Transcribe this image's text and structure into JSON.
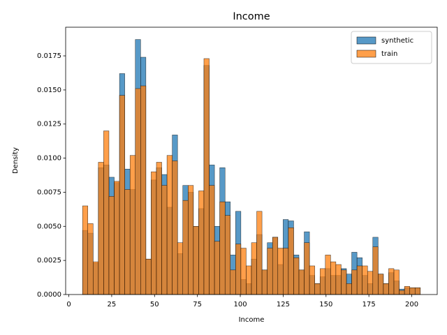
{
  "chart_data": {
    "type": "histogram",
    "title": "Income",
    "x_label": "Income",
    "y_label": "Density",
    "bins": [
      8,
      11.08,
      14.16,
      17.23,
      20.31,
      23.39,
      26.47,
      29.55,
      32.62,
      35.7,
      38.78,
      41.86,
      44.94,
      48.01,
      51.09,
      54.17,
      57.25,
      60.33,
      63.4,
      66.48,
      69.56,
      72.64,
      75.72,
      78.79,
      81.87,
      84.95,
      88.03,
      91.11,
      94.18,
      97.26,
      100.34,
      103.42,
      106.5,
      109.57,
      112.65,
      115.73,
      118.81,
      121.89,
      124.96,
      128.04,
      131.12,
      134.2,
      137.28,
      140.35,
      143.43,
      146.51,
      149.59,
      152.67,
      155.74,
      158.82,
      161.9,
      164.98,
      168.06,
      171.13,
      174.21,
      177.29,
      180.37,
      183.45,
      186.52,
      189.6,
      192.68,
      195.76,
      198.84,
      201.91,
      204.99
    ],
    "series": [
      {
        "name": "synthetic",
        "color": "#1f77b4",
        "values": [
          0.0047,
          0.0045,
          0.0023,
          0.0093,
          0.0095,
          0.0086,
          0.0082,
          0.0162,
          0.0092,
          0.0077,
          0.0187,
          0.0174,
          0.0026,
          0.0084,
          0.0093,
          0.0088,
          0.0064,
          0.0117,
          0.003,
          0.008,
          0.0075,
          0.005,
          0.0063,
          0.0168,
          0.0095,
          0.005,
          0.0093,
          0.0068,
          0.0029,
          0.0061,
          0.0011,
          0.0008,
          0.0026,
          0.0044,
          0.0018,
          0.0038,
          0.0042,
          0.0022,
          0.0055,
          0.0054,
          0.0029,
          0.0018,
          0.0046,
          0.0014,
          0.0008,
          0.0013,
          0.0019,
          0.0014,
          0.0014,
          0.0019,
          0.0015,
          0.0031,
          0.0027,
          0.0014,
          0.0008,
          0.0042,
          0.0015,
          0.0008,
          0.0016,
          0.001,
          0.0004,
          0.0005,
          0.0005,
          0.0005
        ]
      },
      {
        "name": "train",
        "color": "#ff7f0e",
        "values": [
          0.0065,
          0.0052,
          0.0024,
          0.0097,
          0.012,
          0.0072,
          0.0083,
          0.0146,
          0.0077,
          0.0102,
          0.0151,
          0.0153,
          0.0026,
          0.009,
          0.0097,
          0.008,
          0.0102,
          0.0098,
          0.0038,
          0.0069,
          0.008,
          0.005,
          0.0076,
          0.0173,
          0.008,
          0.0039,
          0.0068,
          0.0058,
          0.0018,
          0.0037,
          0.0034,
          0.0021,
          0.0038,
          0.0061,
          0.0018,
          0.0034,
          0.0042,
          0.0034,
          0.0034,
          0.0049,
          0.0027,
          0.0018,
          0.0038,
          0.0021,
          0.0008,
          0.0019,
          0.0029,
          0.0024,
          0.0022,
          0.0018,
          0.0008,
          0.0018,
          0.0021,
          0.0021,
          0.0017,
          0.0035,
          0.0015,
          0.0008,
          0.0019,
          0.0018,
          0.0003,
          0.0006,
          0.0005,
          0.0005
        ]
      }
    ],
    "xlim": [
      -1.85,
      214.85
    ],
    "xticks": [
      0,
      25,
      50,
      75,
      100,
      125,
      150,
      175,
      200
    ],
    "ylim": [
      0,
      0.0196
    ],
    "yticks": [
      {
        "value": 0,
        "label": "0.0000"
      },
      {
        "value": 0.0025,
        "label": "0.0025"
      },
      {
        "value": 0.005,
        "label": "0.0050"
      },
      {
        "value": 0.0075,
        "label": "0.0075"
      },
      {
        "value": 0.01,
        "label": "0.0100"
      },
      {
        "value": 0.0125,
        "label": "0.0125"
      },
      {
        "value": 0.015,
        "label": "0.0150"
      },
      {
        "value": 0.0175,
        "label": "0.0175"
      }
    ],
    "legend": "upper right",
    "grid": false
  }
}
